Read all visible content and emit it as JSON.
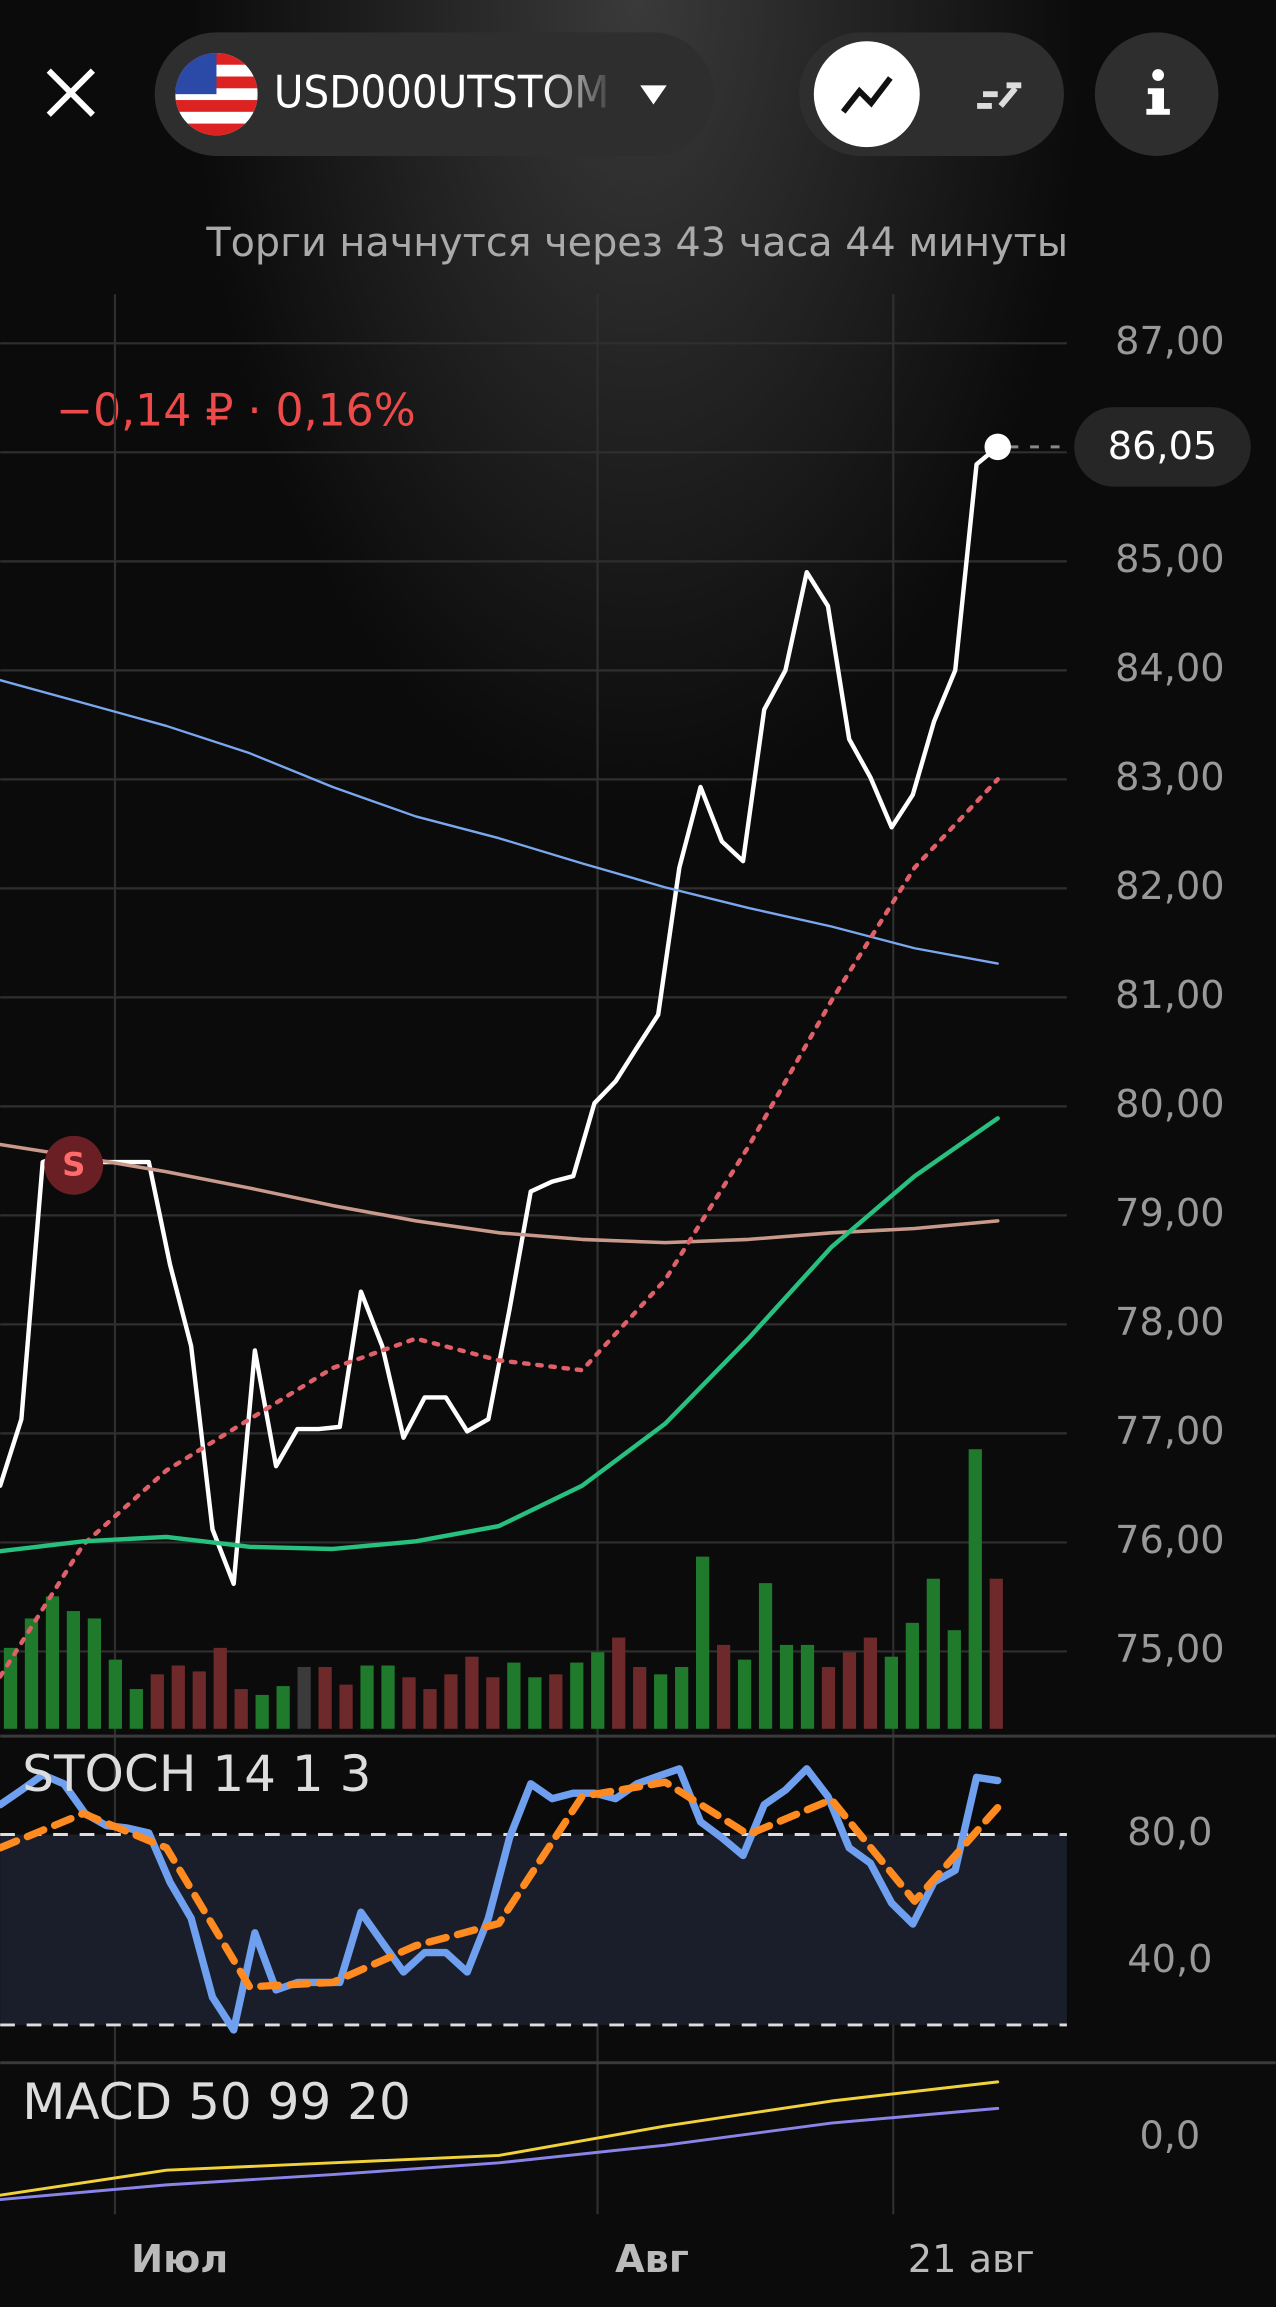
{
  "header": {
    "ticker": "USD000UTSTOM",
    "status": "Торги начнутся через 43 часа 44 минуты"
  },
  "chart_data": {
    "type": "line",
    "change_label": "−0,14 ₽ · 0,16%",
    "last_price": {
      "value": 86.05,
      "label": "86,05"
    },
    "marker_label": "S",
    "ylim": [
      74.25,
      87.45
    ],
    "yticks": [
      {
        "value": 75,
        "label": "75,00"
      },
      {
        "value": 76,
        "label": "76,00"
      },
      {
        "value": 77,
        "label": "77,00"
      },
      {
        "value": 78,
        "label": "78,00"
      },
      {
        "value": 79,
        "label": "79,00"
      },
      {
        "value": 80,
        "label": "80,00"
      },
      {
        "value": 81,
        "label": "81,00"
      },
      {
        "value": 82,
        "label": "82,00"
      },
      {
        "value": 83,
        "label": "83,00"
      },
      {
        "value": 84,
        "label": "84,00"
      },
      {
        "value": 85,
        "label": "85,00"
      },
      {
        "value": 86,
        "label": "86,00"
      },
      {
        "value": 87,
        "label": "87,00"
      }
    ],
    "series": [
      {
        "color": "#ffffff",
        "style": "solid",
        "width": 3,
        "values": [
          76.52,
          77.13,
          79.49,
          79.56,
          79.49,
          79.49,
          79.49,
          79.49,
          78.55,
          77.8,
          76.12,
          75.62,
          77.76,
          76.7,
          77.04,
          77.04,
          77.06,
          78.3,
          77.8,
          76.96,
          77.33,
          77.33,
          77.02,
          77.13,
          78.14,
          79.22,
          79.31,
          79.36,
          80.03,
          80.23,
          80.54,
          80.84,
          82.19,
          82.93,
          82.43,
          82.25,
          83.64,
          84.0,
          84.9,
          84.59,
          83.37,
          83.02,
          82.56,
          82.86,
          83.53,
          84.0,
          85.89,
          86.05
        ]
      },
      {
        "color": "#7aa7ee",
        "style": "solid",
        "width": 1.6,
        "values": [
          83.91,
          83.7,
          83.49,
          83.24,
          82.93,
          82.66,
          82.46,
          82.23,
          82.01,
          81.82,
          81.65,
          81.45,
          81.31
        ]
      },
      {
        "color": "#c99a8c",
        "style": "solid",
        "width": 2.4,
        "values": [
          79.65,
          79.53,
          79.4,
          79.25,
          79.09,
          78.95,
          78.84,
          78.78,
          78.75,
          78.78,
          78.84,
          78.88,
          78.95
        ]
      },
      {
        "color": "#e0606a",
        "style": "dotted",
        "width": 3,
        "values": [
          74.77,
          75.98,
          76.66,
          77.13,
          77.6,
          77.87,
          77.67,
          77.58,
          78.41,
          79.63,
          80.97,
          82.19,
          83.0
        ]
      },
      {
        "color": "#27c07f",
        "style": "solid",
        "width": 3,
        "values": [
          75.92,
          76.01,
          76.05,
          75.96,
          75.94,
          76.01,
          76.15,
          76.52,
          77.09,
          77.87,
          78.71,
          79.36,
          79.89
        ]
      }
    ]
  },
  "volume": {
    "values": [
      55,
      75,
      90,
      80,
      75,
      47,
      27,
      37,
      43,
      39,
      55,
      27,
      23,
      29,
      42,
      42,
      30,
      43,
      43,
      35,
      27,
      37,
      49,
      35,
      45,
      35,
      37,
      45,
      52,
      62,
      42,
      37,
      42,
      117,
      57,
      47,
      99,
      57,
      57,
      42,
      52,
      62,
      49,
      72,
      102,
      67,
      190,
      102
    ],
    "colors": [
      "#1f7a2c",
      "#1f7a2c",
      "#1f7a2c",
      "#1f7a2c",
      "#1f7a2c",
      "#1f7a2c",
      "#1f7a2c",
      "#6e2a2a",
      "#6e2a2a",
      "#6e2a2a",
      "#6e2a2a",
      "#6e2a2a",
      "#1f7a2c",
      "#1f7a2c",
      "#3a3a3a",
      "#6e2a2a",
      "#6e2a2a",
      "#1f7a2c",
      "#1f7a2c",
      "#6e2a2a",
      "#6e2a2a",
      "#6e2a2a",
      "#6e2a2a",
      "#6e2a2a",
      "#1f7a2c",
      "#1f7a2c",
      "#6e2a2a",
      "#1f7a2c",
      "#1f7a2c",
      "#6e2a2a",
      "#6e2a2a",
      "#1f7a2c",
      "#1f7a2c",
      "#1f7a2c",
      "#6e2a2a",
      "#1f7a2c",
      "#1f7a2c",
      "#1f7a2c",
      "#1f7a2c",
      "#6e2a2a",
      "#6e2a2a",
      "#6e2a2a",
      "#1f7a2c",
      "#1f7a2c",
      "#1f7a2c",
      "#1f7a2c",
      "#1f7a2c",
      "#6e2a2a"
    ]
  },
  "stoch": {
    "title": "STOCH 14 1 3",
    "ylim": [
      9,
      111
    ],
    "yticks": [
      {
        "value": 80,
        "label": "80,0"
      },
      {
        "value": 40,
        "label": "40,0"
      }
    ],
    "levels": [
      20,
      80
    ],
    "series": [
      {
        "color": "#6fa0f0",
        "style": "solid",
        "values": [
          89.4,
          94,
          98.8,
          96,
          86.6,
          82.8,
          82,
          80.5,
          65,
          53.6,
          28.7,
          18.4,
          49,
          31,
          33.4,
          33.4,
          33.4,
          55.5,
          46,
          36.7,
          42.8,
          42.8,
          36.7,
          53.6,
          79,
          96,
          91.3,
          93,
          93,
          91.3,
          96,
          98.4,
          100.7,
          84,
          79,
          73.4,
          89.4,
          94,
          100.7,
          92,
          75.8,
          71,
          58.4,
          51.8,
          65,
          68.7,
          98,
          97
        ]
      },
      {
        "color": "#ff8a1f",
        "style": "dashed",
        "values": [
          75.8,
          86.6,
          75.8,
          32,
          33.4,
          45,
          52,
          92,
          96.5,
          80,
          91,
          59,
          88.5
        ]
      }
    ]
  },
  "macd": {
    "title": "MACD 50 99 20",
    "ylim": [
      -1.8,
      1.8
    ],
    "yticks": [
      {
        "value": 0,
        "label": "0,0"
      }
    ],
    "series": [
      {
        "color": "#f2d23a",
        "style": "solid",
        "values": [
          -1.56,
          -0.88,
          -0.68,
          -0.48,
          0.32,
          1.0,
          1.52
        ]
      },
      {
        "color": "#8b84e8",
        "style": "solid",
        "values": [
          -1.68,
          -1.28,
          -1.0,
          -0.68,
          -0.2,
          0.4,
          0.8
        ]
      }
    ]
  },
  "x_labels": [
    "Июл",
    "Авг",
    "21 авг"
  ]
}
